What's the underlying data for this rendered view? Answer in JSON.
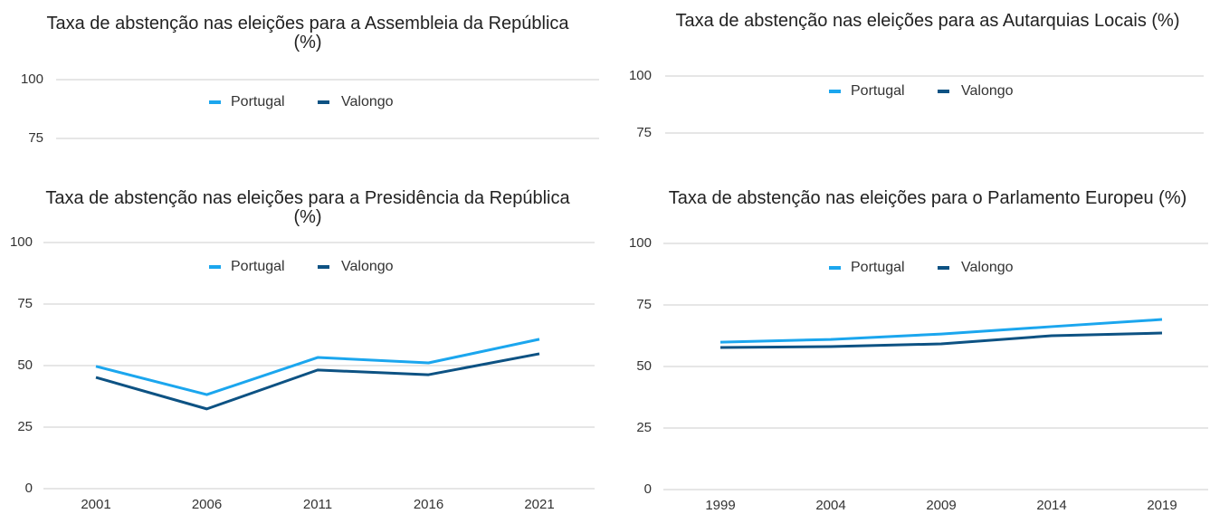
{
  "chart_data": [
    {
      "type": "line",
      "title": "Taxa de abstenção nas eleições para a Assembleia da República (%)",
      "series": [
        {
          "name": "Portugal",
          "color": "#1ba6ee"
        },
        {
          "name": "Valongo",
          "color": "#0d5283"
        }
      ],
      "ylim": [
        75,
        100
      ],
      "yticks": [
        100,
        75
      ],
      "grid": true,
      "legend": "top"
    },
    {
      "type": "line",
      "title": "Taxa de abstenção nas eleições para as Autarquias Locais (%)",
      "series": [
        {
          "name": "Portugal",
          "color": "#1ba6ee"
        },
        {
          "name": "Valongo",
          "color": "#0d5283"
        }
      ],
      "ylim": [
        75,
        100
      ],
      "yticks": [
        100,
        75
      ],
      "grid": true,
      "legend": "top"
    },
    {
      "type": "line",
      "title": "Taxa de abstenção nas eleições para a Presidência da República (%)",
      "categories": [
        "2001",
        "2006",
        "2011",
        "2016",
        "2021"
      ],
      "series": [
        {
          "name": "Portugal",
          "color": "#1ba6ee",
          "values": [
            49.7,
            38.2,
            53.3,
            51.1,
            60.7
          ]
        },
        {
          "name": "Valongo",
          "color": "#0d5283",
          "values": [
            45.2,
            32.4,
            48.2,
            46.3,
            54.8
          ]
        }
      ],
      "ylim": [
        0,
        100
      ],
      "yticks": [
        0,
        25,
        50,
        75,
        100
      ],
      "grid": true,
      "legend": "top"
    },
    {
      "type": "line",
      "title": "Taxa de abstenção nas eleições para o Parlamento Europeu (%)",
      "categories": [
        "1999",
        "2004",
        "2009",
        "2014",
        "2019"
      ],
      "series": [
        {
          "name": "Portugal",
          "color": "#1ba6ee",
          "values": [
            59.9,
            61.0,
            63.2,
            66.2,
            69.1
          ]
        },
        {
          "name": "Valongo",
          "color": "#0d5283",
          "values": [
            57.7,
            58.1,
            59.2,
            62.5,
            63.6
          ]
        }
      ],
      "ylim": [
        0,
        100
      ],
      "yticks": [
        0,
        25,
        50,
        75,
        100
      ],
      "grid": true,
      "legend": "top"
    }
  ]
}
